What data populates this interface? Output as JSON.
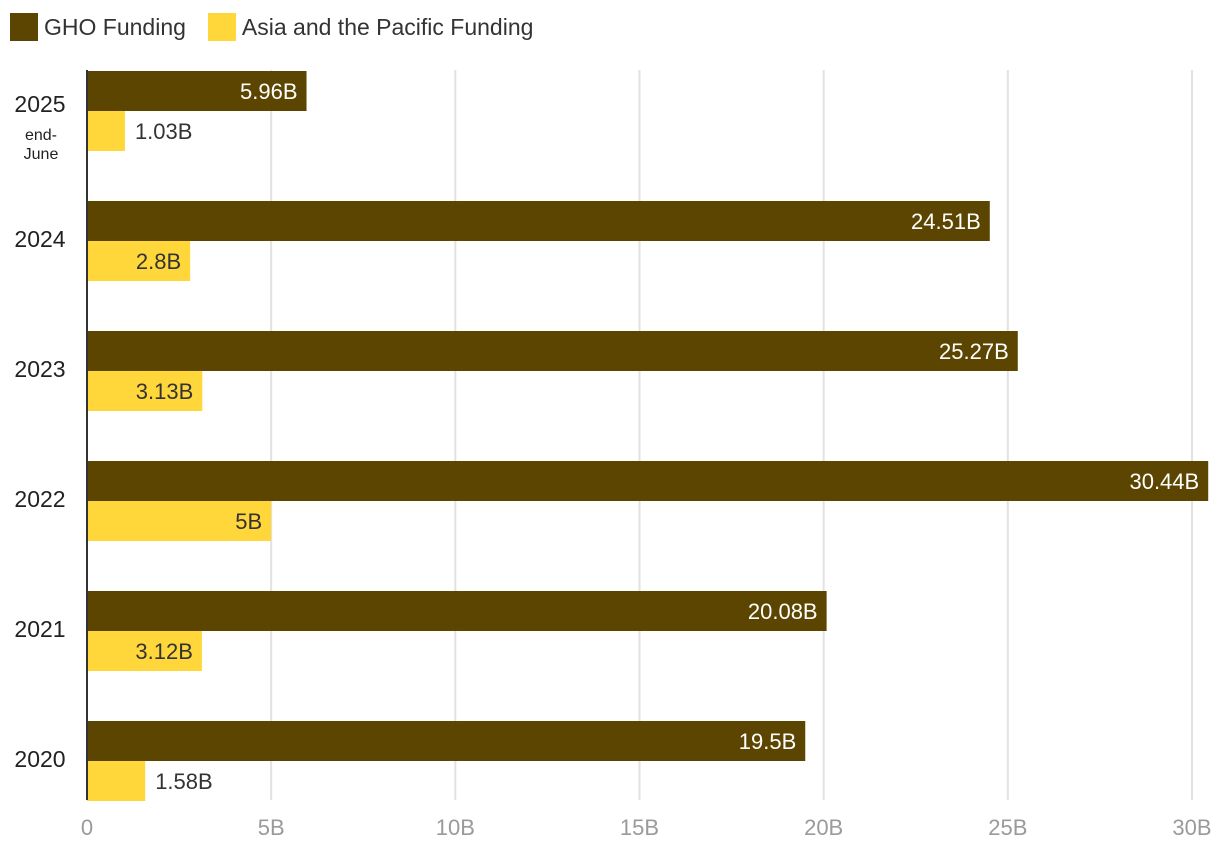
{
  "chart_data": {
    "type": "bar",
    "orientation": "horizontal",
    "categories": [
      {
        "label": "2025",
        "sublabel": [
          "end-",
          "June"
        ]
      },
      {
        "label": "2024"
      },
      {
        "label": "2023"
      },
      {
        "label": "2022"
      },
      {
        "label": "2021"
      },
      {
        "label": "2020"
      }
    ],
    "series": [
      {
        "name": "GHO Funding",
        "color": "#5c4500",
        "values": [
          5.96,
          24.51,
          25.27,
          30.44,
          20.08,
          19.5
        ],
        "labels": [
          "5.96B",
          "24.51B",
          "25.27B",
          "30.44B",
          "20.08B",
          "19.5B"
        ]
      },
      {
        "name": "Asia and the Pacific Funding",
        "color": "#ffd73a",
        "values": [
          1.03,
          2.8,
          3.13,
          5,
          3.12,
          1.58
        ],
        "labels": [
          "1.03B",
          "2.8B",
          "3.13B",
          "5B",
          "3.12B",
          "1.58B"
        ]
      }
    ],
    "xlim": [
      0,
      30
    ],
    "xticks": [
      0,
      5,
      10,
      15,
      20,
      25,
      30
    ],
    "xtick_labels": [
      "0",
      "5B",
      "10B",
      "15B",
      "20B",
      "25B",
      "30B"
    ],
    "grid": true,
    "legend_position": "top-left",
    "title": "",
    "xlabel": "",
    "ylabel": ""
  }
}
